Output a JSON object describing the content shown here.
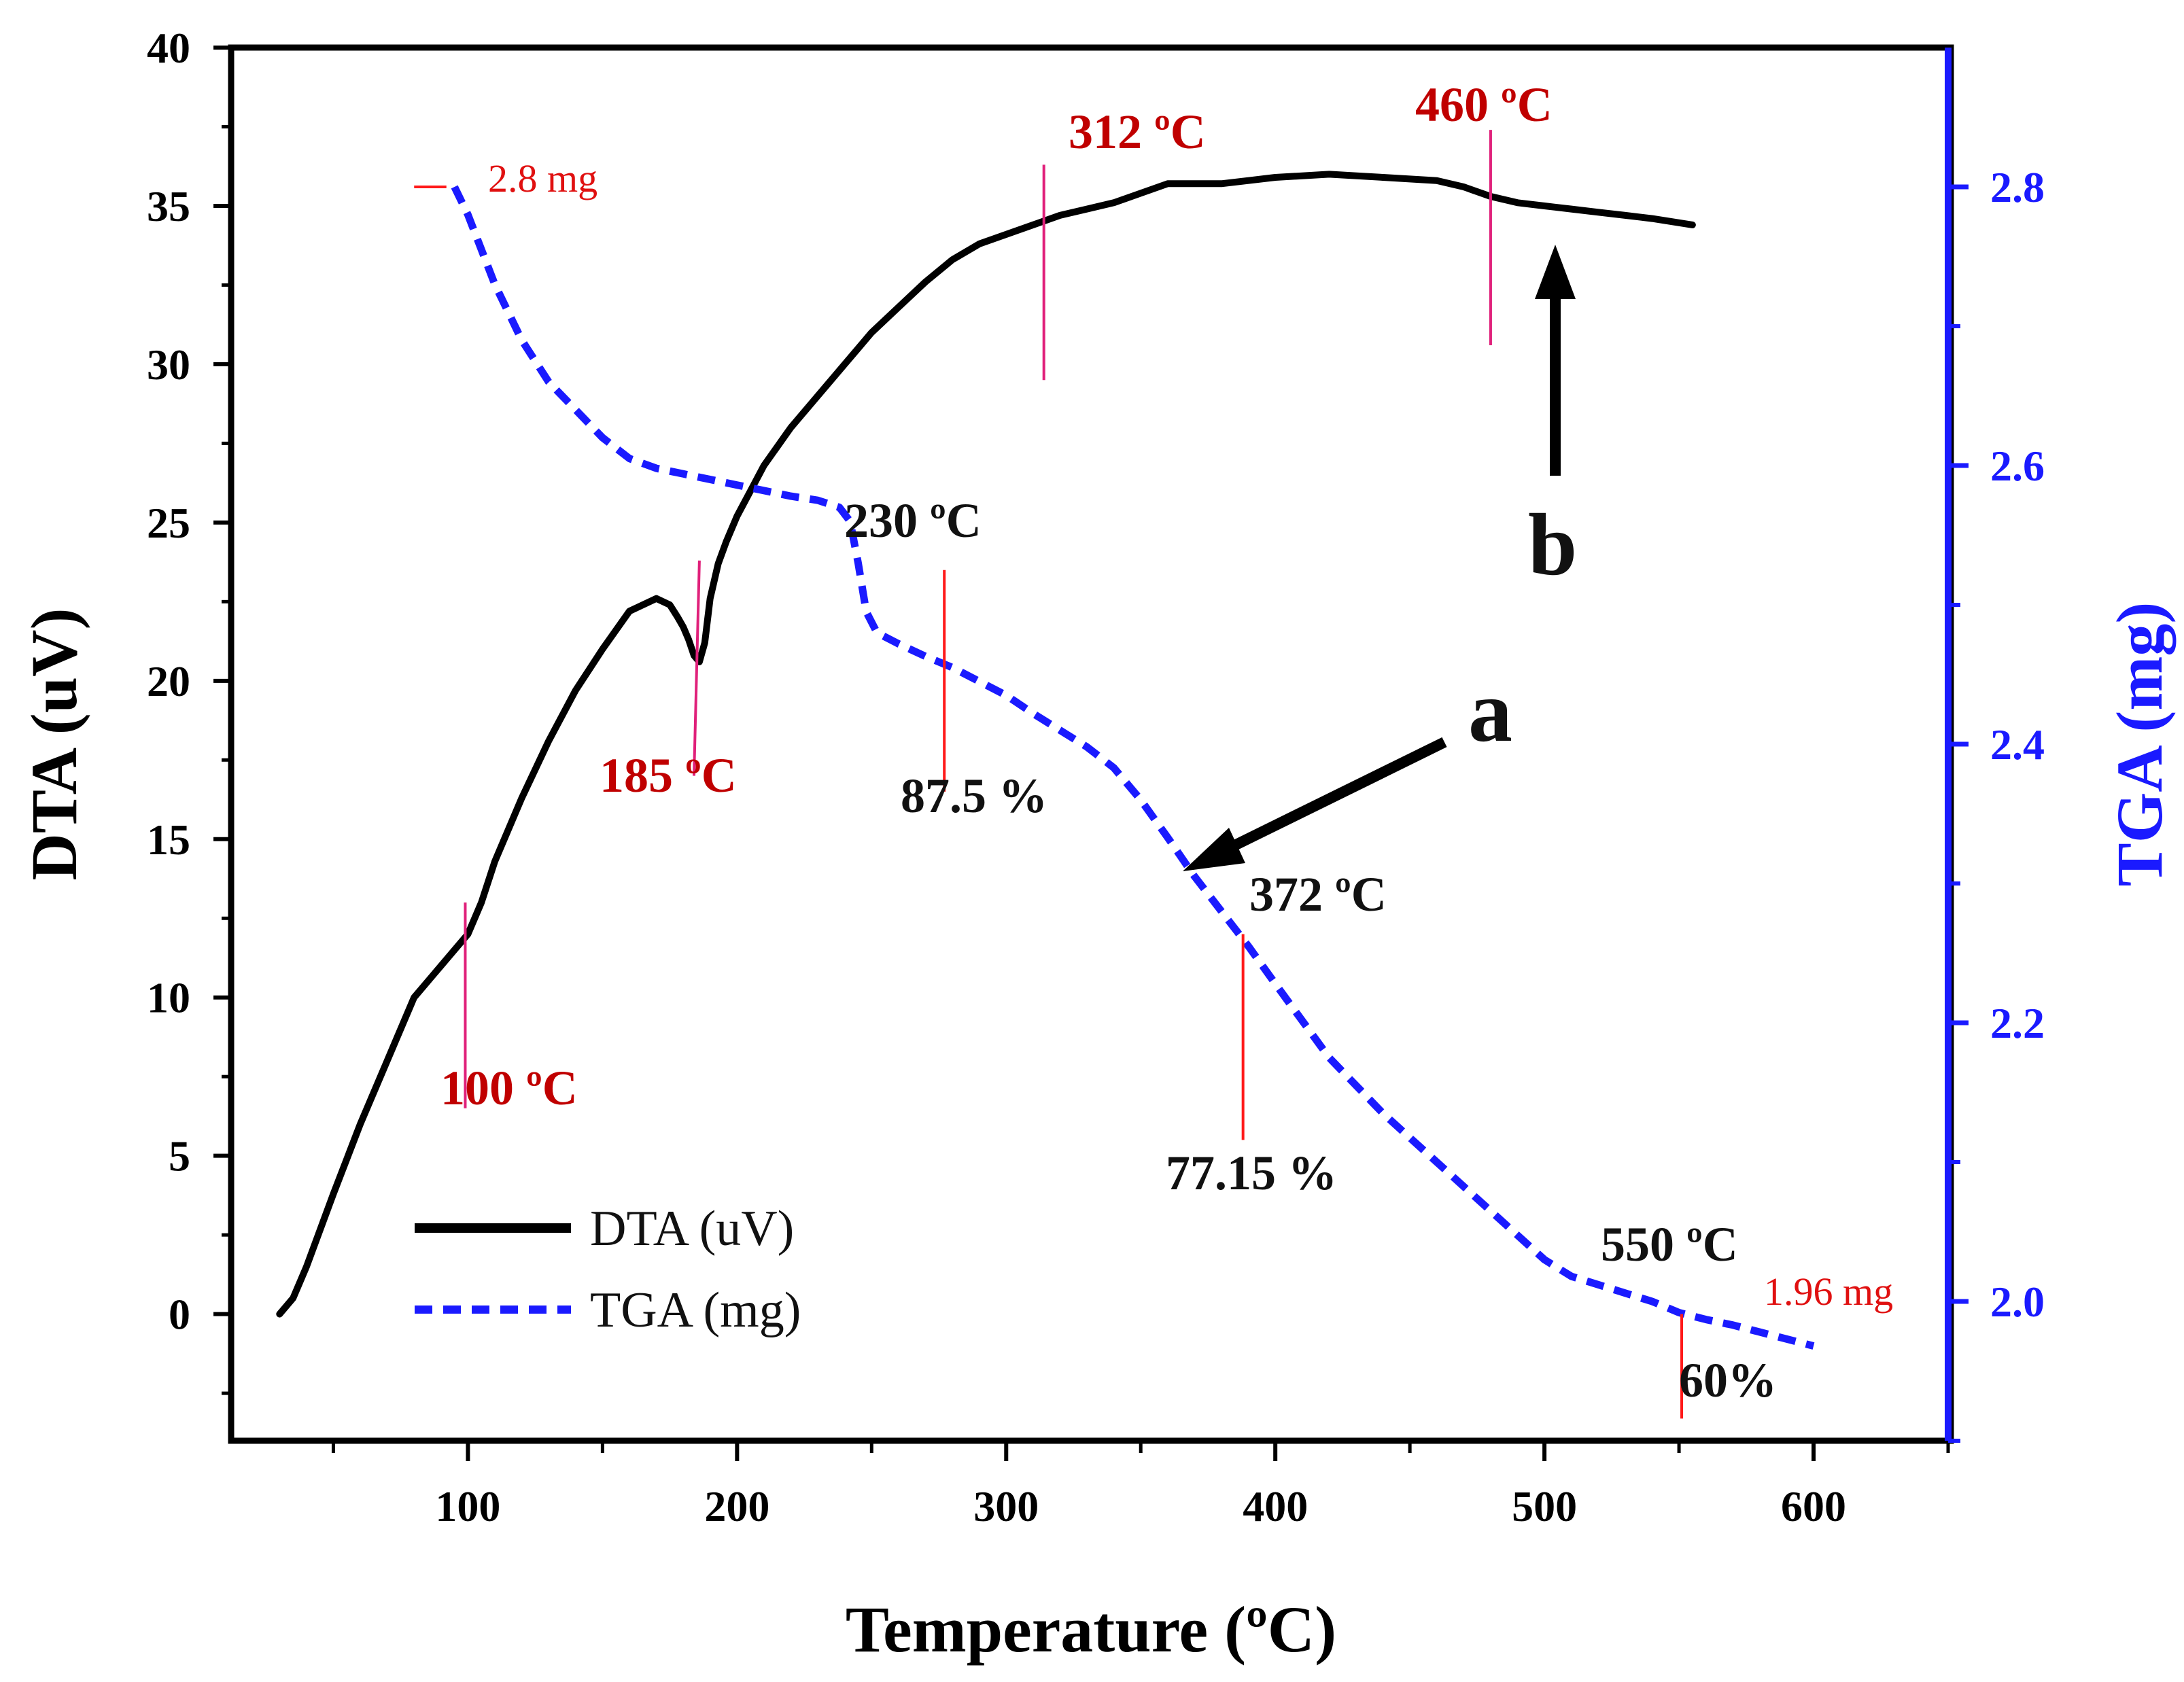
{
  "chart_data": {
    "type": "line",
    "xlabel": "Temperature (ºC)",
    "ylabel": "DTA (uV)",
    "y2label": "TGA (mg)",
    "xlim": [
      12,
      650
    ],
    "ylim": [
      -4,
      40
    ],
    "y2lim": [
      1.9,
      2.9
    ],
    "x_ticks": [
      100,
      200,
      300,
      400,
      500,
      600
    ],
    "y_ticks": [
      0,
      5,
      10,
      15,
      20,
      25,
      30,
      35,
      40
    ],
    "y2_ticks": [
      2.0,
      2.2,
      2.4,
      2.6,
      2.8
    ],
    "x_tick_labels": [
      "100",
      "200",
      "300",
      "400",
      "500",
      "600"
    ],
    "y_tick_labels": [
      "0",
      "5",
      "10",
      "15",
      "20",
      "25",
      "30",
      "35",
      "40"
    ],
    "y2_tick_labels": [
      "2.0",
      "2.2",
      "2.4",
      "2.6",
      "2.8"
    ],
    "colors": {
      "dta": "#000000",
      "tga": "#1a1aff",
      "marker_red": "#ff1a1a",
      "marker_pink": "#e0207a",
      "annotation_red": "#c00000"
    },
    "series": [
      {
        "name": "DTA (uV)",
        "axis": "left",
        "style": "solid",
        "x": [
          30,
          35,
          40,
          50,
          60,
          70,
          80,
          90,
          100,
          105,
          110,
          120,
          130,
          140,
          150,
          160,
          170,
          175,
          178,
          180,
          182,
          184,
          186,
          188,
          190,
          193,
          196,
          200,
          205,
          210,
          220,
          230,
          240,
          250,
          260,
          270,
          280,
          290,
          300,
          310,
          320,
          330,
          340,
          350,
          360,
          370,
          380,
          390,
          400,
          420,
          440,
          460,
          470,
          480,
          490,
          500,
          510,
          520,
          530,
          540,
          555
        ],
        "values": [
          0.0,
          0.5,
          1.5,
          3.8,
          6.0,
          8.0,
          10.0,
          11.0,
          12.0,
          13.0,
          14.3,
          16.3,
          18.1,
          19.7,
          21.0,
          22.2,
          22.6,
          22.4,
          22.0,
          21.7,
          21.3,
          20.8,
          20.6,
          21.2,
          22.6,
          23.7,
          24.4,
          25.2,
          26.0,
          26.8,
          28.0,
          29.0,
          30.0,
          31.0,
          31.8,
          32.6,
          33.3,
          33.8,
          34.1,
          34.4,
          34.7,
          34.9,
          35.1,
          35.4,
          35.7,
          35.7,
          35.7,
          35.8,
          35.9,
          36.0,
          35.9,
          35.8,
          35.6,
          35.3,
          35.1,
          35.0,
          34.9,
          34.8,
          34.7,
          34.6,
          34.4
        ]
      },
      {
        "name": "TGA (mg)",
        "axis": "right",
        "style": "dashed",
        "x": [
          95,
          100,
          110,
          120,
          130,
          140,
          150,
          160,
          170,
          180,
          190,
          200,
          210,
          220,
          230,
          238,
          242,
          245,
          248,
          252,
          260,
          270,
          280,
          290,
          300,
          310,
          320,
          330,
          340,
          350,
          360,
          370,
          380,
          390,
          400,
          420,
          440,
          460,
          480,
          500,
          510,
          520,
          530,
          540,
          550,
          560,
          570,
          580,
          590,
          600
        ],
        "values": [
          2.8,
          2.78,
          2.73,
          2.69,
          2.66,
          2.64,
          2.62,
          2.605,
          2.598,
          2.594,
          2.59,
          2.586,
          2.582,
          2.578,
          2.575,
          2.57,
          2.56,
          2.53,
          2.495,
          2.48,
          2.472,
          2.463,
          2.455,
          2.445,
          2.435,
          2.422,
          2.41,
          2.398,
          2.383,
          2.36,
          2.333,
          2.305,
          2.28,
          2.255,
          2.228,
          2.175,
          2.135,
          2.1,
          2.065,
          2.03,
          2.018,
          2.012,
          2.006,
          2.0,
          1.992,
          1.987,
          1.983,
          1.978,
          1.973,
          1.968
        ]
      }
    ],
    "legend": {
      "position": "lower-left",
      "entries": [
        "DTA (uV)",
        "TGA (mg)"
      ]
    },
    "annotations": {
      "t100": "100 ºC",
      "t185": "185 ºC",
      "t312": "312 ºC",
      "t460": "460 ºC",
      "t230": "230 ºC",
      "t372": "372 ºC",
      "t550": "550 ºC",
      "p875": "87.5 %",
      "p7715": "77.15 %",
      "p60": "60%",
      "m28": "2.8 mg",
      "m196": "1.96 mg",
      "label_a": "a",
      "label_b": "b"
    },
    "markers": [
      {
        "axis": "left",
        "x": 99,
        "y_from": 6.5,
        "y_to": 13,
        "color": "marker_pink"
      },
      {
        "axis": "left",
        "x1": 184,
        "y1": 17.0,
        "x2": 186,
        "y2": 23.8,
        "color": "marker_pink"
      },
      {
        "axis": "left",
        "x": 314,
        "y_from": 29.5,
        "y_to": 36.3,
        "color": "marker_pink"
      },
      {
        "axis": "left",
        "x": 480,
        "y_from": 30.6,
        "y_to": 37.4,
        "color": "marker_pink"
      },
      {
        "axis": "left",
        "x": 277,
        "y_from": 16.5,
        "y_to": 23.5,
        "color": "marker_red"
      },
      {
        "axis": "left",
        "x": 388,
        "y_from": 5.5,
        "y_to": 12.0,
        "color": "marker_red"
      },
      {
        "axis": "left",
        "x": 551,
        "y_from": -3.3,
        "y_to": 0.0,
        "color": "marker_red"
      },
      {
        "axis": "left",
        "x1": 80,
        "y1": 35.6,
        "x2": 92,
        "y2": 35.6,
        "color": "marker_red"
      }
    ]
  }
}
